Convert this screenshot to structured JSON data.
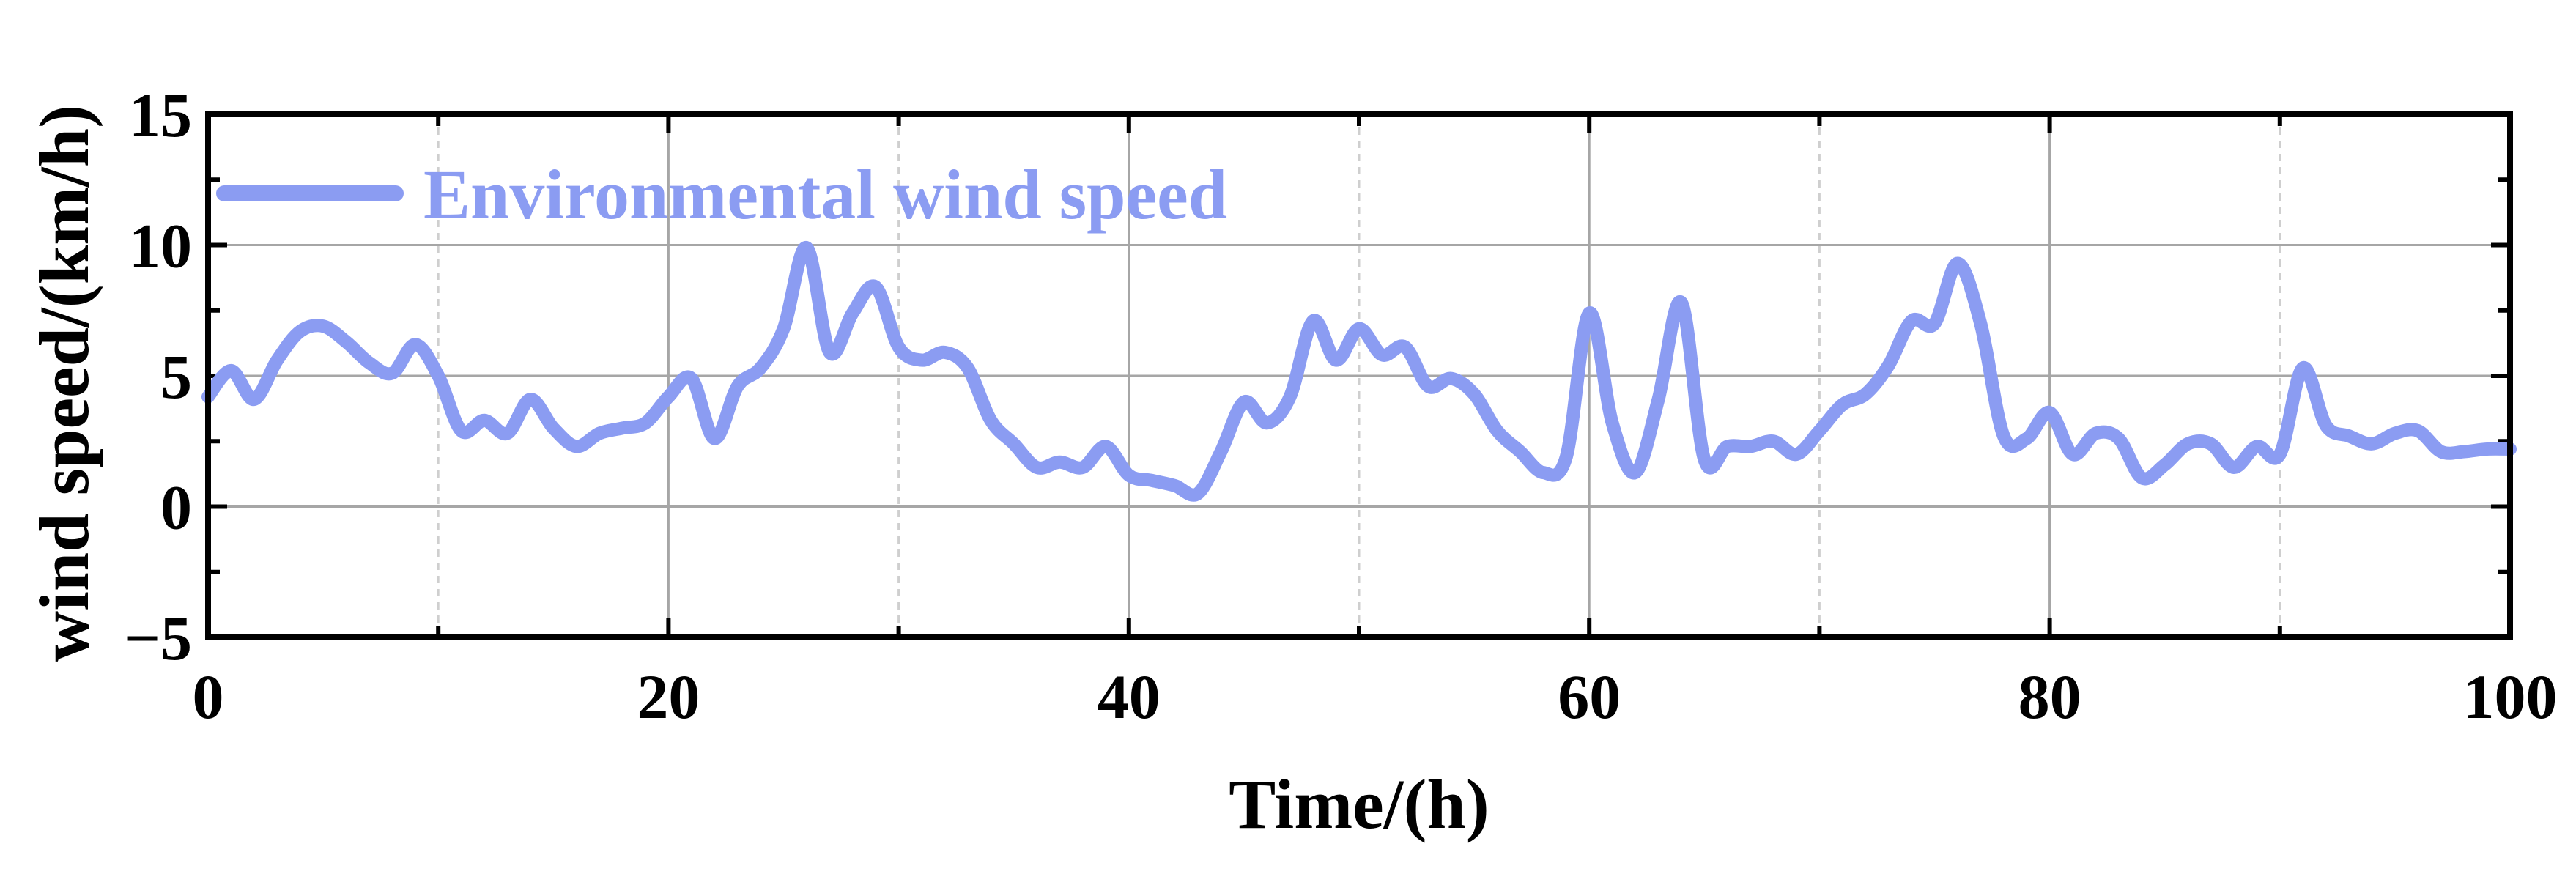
{
  "chart_data": {
    "type": "line",
    "xlabel": "Time/(h)",
    "ylabel": "wind speed/(km/h)",
    "xlim": [
      0,
      100
    ],
    "ylim": [
      -5,
      15
    ],
    "xticks": [
      0,
      20,
      40,
      60,
      80,
      100
    ],
    "xtick_labels": [
      "0",
      "20",
      "40",
      "60",
      "80",
      "100"
    ],
    "yticks": [
      -5,
      0,
      5,
      10,
      15
    ],
    "ytick_labels": [
      "−5",
      "0",
      "5",
      "10",
      "15"
    ],
    "grid": true,
    "legend_position": "top-left",
    "colors": {
      "series": "#8b9cf2",
      "axis": "#000000",
      "grid_major": "#a6a6a6",
      "grid_minor": "#cfcfcf"
    },
    "series": [
      {
        "name": "Environmental wind speed",
        "x": [
          0,
          1,
          2,
          3,
          4,
          5,
          6,
          7,
          8,
          9,
          10,
          11,
          12,
          13,
          14,
          15,
          16,
          17,
          18,
          19,
          20,
          21,
          22,
          23,
          24,
          25,
          26,
          27,
          28,
          29,
          30,
          31,
          32,
          33,
          34,
          35,
          36,
          37,
          38,
          39,
          40,
          41,
          42,
          43,
          44,
          45,
          46,
          47,
          48,
          49,
          50,
          51,
          52,
          53,
          54,
          55,
          56,
          57,
          58,
          59,
          60,
          61,
          62,
          63,
          64,
          65,
          66,
          67,
          68,
          69,
          70,
          71,
          72,
          73,
          74,
          75,
          76,
          77,
          78,
          79,
          80,
          81,
          82,
          83,
          84,
          85,
          86,
          87,
          88,
          89,
          90,
          91,
          92,
          93,
          94,
          95,
          96,
          97,
          98,
          99,
          100
        ],
        "y": [
          4.2,
          5.2,
          4.1,
          5.6,
          6.7,
          6.9,
          6.3,
          5.5,
          5.1,
          6.2,
          5.0,
          2.9,
          3.3,
          2.8,
          4.1,
          3.0,
          2.3,
          2.8,
          3.0,
          3.2,
          4.2,
          4.9,
          2.6,
          4.6,
          5.3,
          6.8,
          9.9,
          5.9,
          7.4,
          8.4,
          6.1,
          5.6,
          5.9,
          5.3,
          3.3,
          2.4,
          1.5,
          1.7,
          1.5,
          2.3,
          1.2,
          1.0,
          0.8,
          0.5,
          2.1,
          4.0,
          3.2,
          4.2,
          7.1,
          5.6,
          6.8,
          5.8,
          6.1,
          4.6,
          4.9,
          4.3,
          2.9,
          2.1,
          1.3,
          1.9,
          7.4,
          3.2,
          1.3,
          4.1,
          7.8,
          1.8,
          2.3,
          2.3,
          2.5,
          2.0,
          2.9,
          3.9,
          4.3,
          5.4,
          7.1,
          7.0,
          9.3,
          7.0,
          2.7,
          2.6,
          3.6,
          2.0,
          2.8,
          2.6,
          1.1,
          1.6,
          2.4,
          2.4,
          1.5,
          2.3,
          2.0,
          5.3,
          3.1,
          2.7,
          2.4,
          2.8,
          2.9,
          2.1,
          2.1,
          2.2,
          2.2
        ]
      }
    ]
  }
}
